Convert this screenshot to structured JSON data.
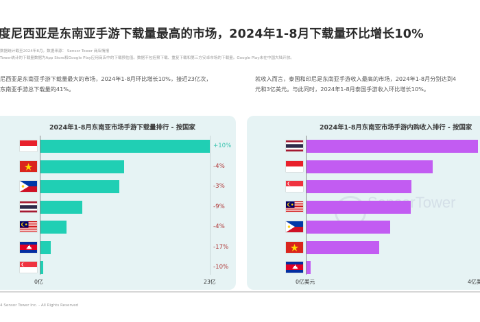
{
  "header": {
    "title": "度尼西亚是东南亚手游下载量最高的市场，2024年1-8月下载量环比增长10%",
    "notes": [
      "数据统计截至2024年8月。数据来源： Sensor Tower 商店情报",
      "Tower统计的下载量数据为App Store和Google Play应用商店中的下载预估值。数据不包括预下载、重复下载和第三方安卓市场的下载量。Google Play未在中国大陆开放。"
    ]
  },
  "paragraphs": {
    "left": [
      "尼西亚是东南亚手游下载量最大的市场，2024年1-8月环比增长10%，接近23亿次，",
      "东南亚手游总下载量的41%。"
    ],
    "right": [
      "就收入而言，泰国和印尼是东南亚手游收入最高的市场，2024年1-8月分别达到4",
      "元和3亿美元。与此同时，2024年1-8月泰国手游收入环比增长10%。"
    ]
  },
  "colors": {
    "downloads_bar": "#20cfb4",
    "revenue_bar": "#c25cf2",
    "positive": "#3cc4b0",
    "negative": "#b03a3a",
    "panel_bg": "#e6f3f4"
  },
  "chart_data": [
    {
      "type": "bar",
      "orientation": "horizontal",
      "title": "2024年1-8月东南亚市场手游下载量排行 - 按国家",
      "categories": [
        "尼西亚",
        "越南",
        "菲律宾",
        "泰国",
        "来西亚",
        "柬埔寨",
        "新加坡"
      ],
      "values": [
        23,
        11.4,
        10.7,
        5.7,
        3.5,
        1.4,
        0.4
      ],
      "unit": "亿",
      "changes": [
        "+10%",
        "-4%",
        "-3%",
        "-9%",
        "-4%",
        "-17%",
        "-10%"
      ],
      "xlabel": "",
      "ylabel": "",
      "xlim": [
        0,
        23
      ],
      "ticks": [
        "0亿",
        "23亿"
      ],
      "grid": false,
      "legend": "none"
    },
    {
      "type": "bar",
      "orientation": "horizontal",
      "title": "2024年1-8月东南亚市场手游内购收入排行 - 按国家",
      "categories": [
        "泰国",
        "印度尼西亚",
        "新加坡",
        "马来西亚",
        "菲律宾",
        "越南",
        "柬埔寨"
      ],
      "values": [
        4.0,
        2.95,
        2.45,
        2.43,
        1.95,
        1.7,
        0.1
      ],
      "unit": "亿美元",
      "xlabel": "",
      "ylabel": "",
      "xlim": [
        0,
        4
      ],
      "ticks": [
        "0亿美元",
        "4亿美"
      ],
      "grid": false,
      "legend": "none"
    }
  ],
  "watermark": "SensorTower",
  "footer": "4 Sensor Tower Inc. - All Rights Reserved"
}
